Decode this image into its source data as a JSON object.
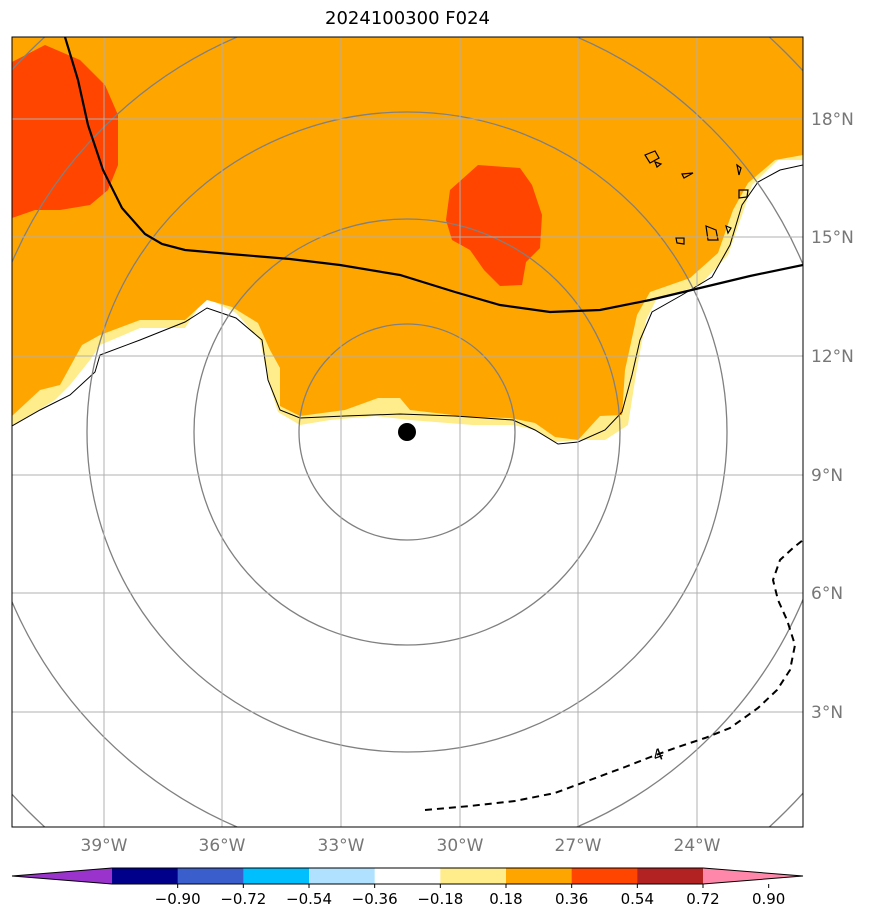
{
  "title": "2024100300 F024",
  "map": {
    "lon_labels": [
      "39°W",
      "36°W",
      "33°W",
      "30°W",
      "27°W",
      "24°W"
    ],
    "lat_labels": [
      "18°N",
      "15°N",
      "12°N",
      "9°N",
      "6°N",
      "3°N"
    ],
    "contour_label": "4",
    "center_marker": "storm-center"
  },
  "colorbar": {
    "ticks": [
      "−0.90",
      "−0.72",
      "−0.54",
      "−0.36",
      "−0.18",
      "0.18",
      "0.36",
      "0.54",
      "0.72",
      "0.90"
    ],
    "colors": [
      "#9933cc",
      "#00008b",
      "#3a5fcd",
      "#00bfff",
      "#b0e2ff",
      "#ffffff",
      "#ffec8b",
      "#ffa500",
      "#ff4500",
      "#b22222",
      "#ff88aa"
    ]
  },
  "colors": {
    "orange": "#ffa500",
    "red": "#ff4500",
    "yellow": "#ffec8b",
    "grid": "#b0b0b0",
    "rings": "#808080"
  }
}
